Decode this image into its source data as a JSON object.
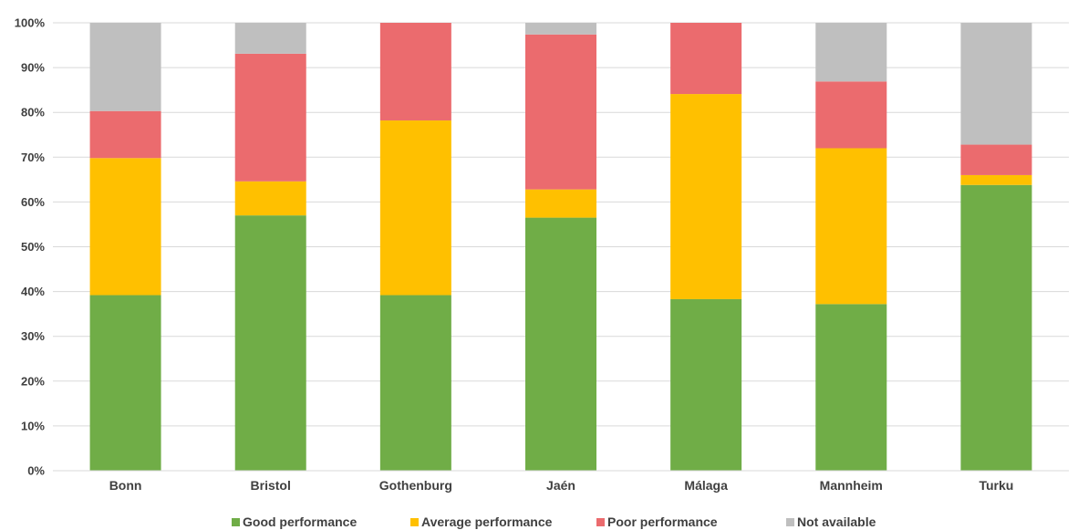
{
  "chart_data": {
    "type": "bar",
    "stacked": true,
    "title": "",
    "xlabel": "",
    "ylabel": "",
    "ylim": [
      0,
      100
    ],
    "y_ticks": [
      "0%",
      "10%",
      "20%",
      "30%",
      "40%",
      "50%",
      "60%",
      "70%",
      "80%",
      "90%",
      "100%"
    ],
    "grid": true,
    "legend_position": "bottom",
    "categories": [
      "Bonn",
      "Bristol",
      "Gothenburg",
      "Jaén",
      "Málaga",
      "Mannheim",
      "Turku"
    ],
    "series": [
      {
        "name": "Good performance",
        "color": "#70AD47",
        "values": [
          39.2,
          57.0,
          39.2,
          56.5,
          38.3,
          37.2,
          63.8
        ]
      },
      {
        "name": "Average performance",
        "color": "#FFC000",
        "values": [
          30.6,
          7.6,
          39.0,
          6.3,
          45.8,
          34.8,
          2.2
        ]
      },
      {
        "name": "Poor performance",
        "color": "#EB6B6E",
        "values": [
          10.5,
          28.5,
          21.8,
          34.6,
          15.9,
          14.9,
          6.8
        ]
      },
      {
        "name": "Not available",
        "color": "#BFBFBF",
        "values": [
          19.7,
          6.9,
          0.0,
          2.6,
          0.0,
          13.1,
          27.2
        ]
      }
    ]
  }
}
